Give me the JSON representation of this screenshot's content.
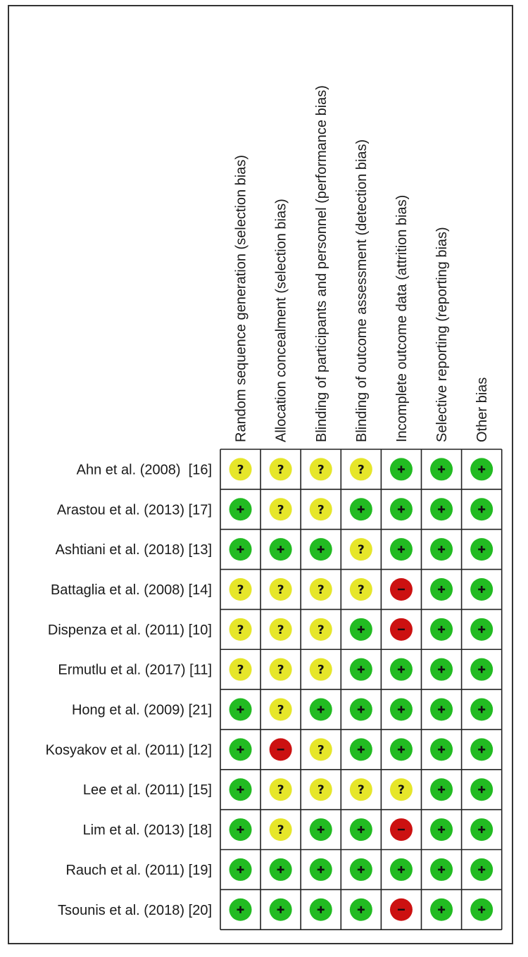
{
  "chart_data": {
    "type": "table",
    "domains": [
      "Random sequence generation (selection bias)",
      "Allocation concealment (selection bias)",
      "Blinding of participants and personnel (performance bias)",
      "Blinding of outcome assessment (detection bias)",
      "Incomplete outcome data (attrition bias)",
      "Selective reporting (reporting bias)",
      "Other bias"
    ],
    "studies": [
      "Ahn et al. (2008)  [16]",
      "Arastou et al. (2013) [17]",
      "Ashtiani et al. (2018) [13]",
      "Battaglia et al. (2008) [14]",
      "Dispenza et al. (2011) [10]",
      "Ermutlu et al. (2017) [11]",
      "Hong et al. (2009) [21]",
      "Kosyakov et al. (2011) [12]",
      "Lee et al. (2011) [15]",
      "Lim et al. (2013) [18]",
      "Rauch et al. (2011) [19]",
      "Tsounis et al. (2018) [20]"
    ],
    "judgements": [
      [
        "unclear",
        "unclear",
        "unclear",
        "unclear",
        "low",
        "low",
        "low"
      ],
      [
        "low",
        "unclear",
        "unclear",
        "low",
        "low",
        "low",
        "low"
      ],
      [
        "low",
        "low",
        "low",
        "unclear",
        "low",
        "low",
        "low"
      ],
      [
        "unclear",
        "unclear",
        "unclear",
        "unclear",
        "high",
        "low",
        "low"
      ],
      [
        "unclear",
        "unclear",
        "unclear",
        "low",
        "high",
        "low",
        "low"
      ],
      [
        "unclear",
        "unclear",
        "unclear",
        "low",
        "low",
        "low",
        "low"
      ],
      [
        "low",
        "unclear",
        "low",
        "low",
        "low",
        "low",
        "low"
      ],
      [
        "low",
        "high",
        "unclear",
        "low",
        "low",
        "low",
        "low"
      ],
      [
        "low",
        "unclear",
        "unclear",
        "unclear",
        "unclear",
        "low",
        "low"
      ],
      [
        "low",
        "unclear",
        "low",
        "low",
        "high",
        "low",
        "low"
      ],
      [
        "low",
        "low",
        "low",
        "low",
        "low",
        "low",
        "low"
      ],
      [
        "low",
        "low",
        "low",
        "low",
        "high",
        "low",
        "low"
      ]
    ],
    "legend": {
      "low": {
        "symbol": "+",
        "color": "#22bb22"
      },
      "unclear": {
        "symbol": "?",
        "color": "#e6e62a"
      },
      "high": {
        "symbol": "−",
        "color": "#cc1111"
      }
    }
  }
}
